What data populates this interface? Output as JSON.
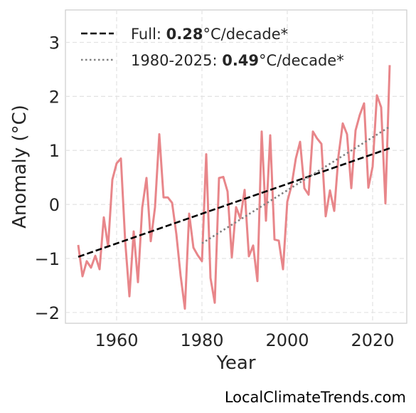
{
  "chart_data": {
    "type": "line",
    "xlabel": "Year",
    "ylabel": "Anomaly (°C)",
    "xlim": [
      1948,
      2028
    ],
    "ylim": [
      -2.2,
      3.6
    ],
    "xticks": [
      1960,
      1980,
      2000,
      2020
    ],
    "yticks": [
      -2,
      -1,
      0,
      1,
      2,
      3
    ],
    "ytick_labels": [
      "−2",
      "−1",
      "0",
      "1",
      "2",
      "3"
    ],
    "grid": true,
    "legend_position": "top-left",
    "series": [
      {
        "kind": "anomaly",
        "color": "#e8868a",
        "x": [
          1951,
          1952,
          1953,
          1954,
          1955,
          1956,
          1957,
          1958,
          1959,
          1960,
          1961,
          1962,
          1963,
          1964,
          1965,
          1966,
          1967,
          1968,
          1969,
          1970,
          1971,
          1972,
          1973,
          1974,
          1975,
          1976,
          1977,
          1978,
          1979,
          1980,
          1981,
          1982,
          1983,
          1984,
          1985,
          1986,
          1987,
          1988,
          1989,
          1990,
          1991,
          1992,
          1993,
          1994,
          1995,
          1996,
          1997,
          1998,
          1999,
          2000,
          2001,
          2002,
          2003,
          2004,
          2005,
          2006,
          2007,
          2008,
          2009,
          2010,
          2011,
          2012,
          2013,
          2014,
          2015,
          2016,
          2017,
          2018,
          2019,
          2020,
          2021,
          2022,
          2023,
          2024
        ],
        "values": [
          -0.75,
          -1.33,
          -1.05,
          -1.17,
          -0.95,
          -1.2,
          -0.24,
          -0.78,
          0.46,
          0.76,
          0.85,
          -0.67,
          -1.7,
          -0.5,
          -1.44,
          -0.06,
          0.49,
          -0.68,
          -0.05,
          1.3,
          0.13,
          0.13,
          0.03,
          -0.55,
          -1.32,
          -1.93,
          -0.17,
          -0.8,
          -0.94,
          -1.05,
          0.93,
          -1.36,
          -1.82,
          0.49,
          0.51,
          0.24,
          -0.98,
          -0.05,
          -0.26,
          0.27,
          -0.96,
          -0.76,
          -1.42,
          1.35,
          -0.3,
          1.28,
          -0.65,
          -0.67,
          -1.2,
          0.05,
          0.35,
          0.85,
          1.16,
          0.3,
          0.18,
          1.35,
          1.22,
          1.12,
          -0.22,
          0.26,
          -0.12,
          0.9,
          1.5,
          1.3,
          0.3,
          1.37,
          1.66,
          1.87,
          0.31,
          0.7,
          2.02,
          1.8,
          0.02,
          2.58
        ]
      },
      {
        "kind": "trend-full",
        "color": "#000000",
        "x": [
          1951,
          2024
        ],
        "values": [
          -0.97,
          1.04
        ]
      },
      {
        "kind": "trend-recent",
        "color": "#808080",
        "x": [
          1980,
          2024
        ],
        "values": [
          -0.72,
          1.44
        ]
      }
    ],
    "legend": [
      {
        "prefix": "Full: ",
        "value": "0.28",
        "suffix": "°C/decade*",
        "style": "dashed",
        "color": "#000000"
      },
      {
        "prefix": "1980-2025: ",
        "value": "0.49",
        "suffix": "°C/decade*",
        "style": "dotted",
        "color": "#808080"
      }
    ]
  },
  "credit": "LocalClimateTrends.com"
}
